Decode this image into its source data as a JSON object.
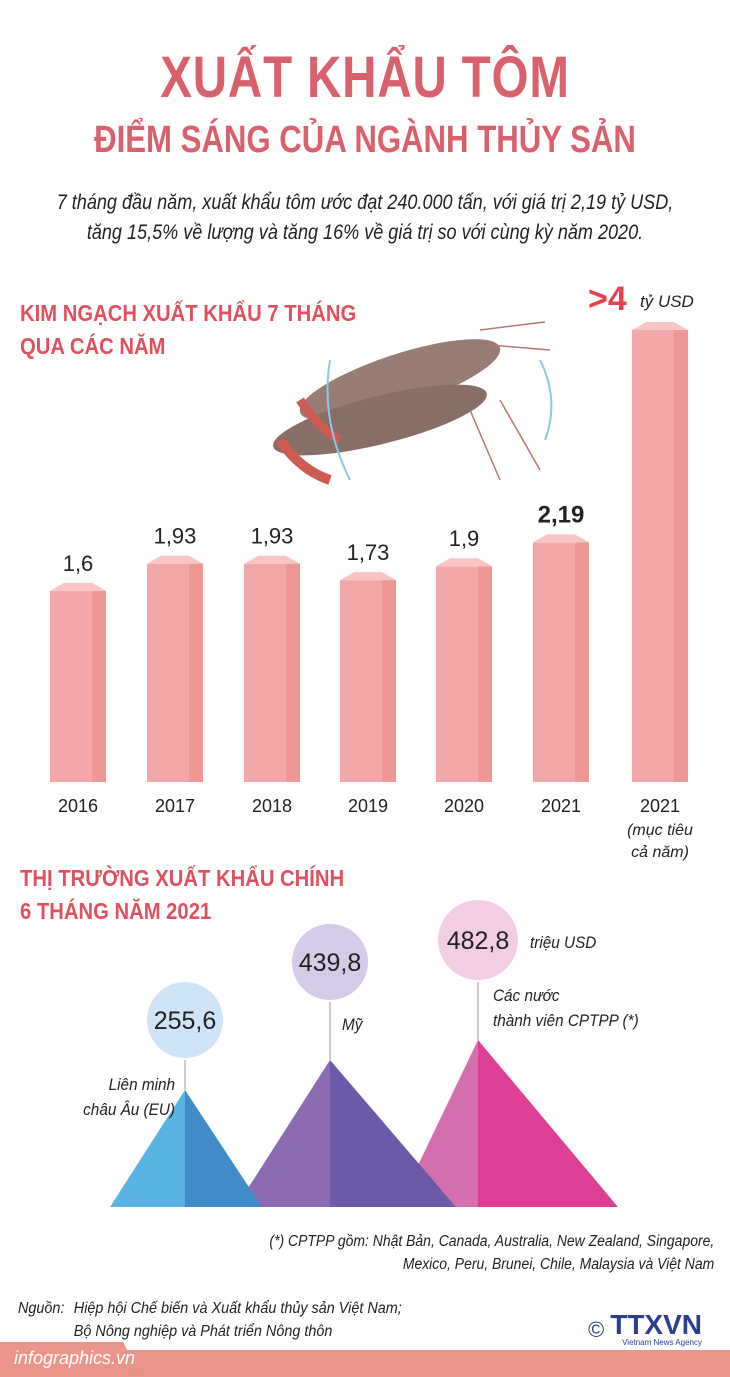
{
  "header": {
    "title": "XUẤT KHẨU TÔM",
    "subtitle": "ĐIỂM SÁNG CỦA NGÀNH THỦY SẢN",
    "intro_line1": "7 tháng đầu năm, xuất khẩu tôm ước đạt 240.000 tấn, với giá trị 2,19 tỷ USD,",
    "intro_line2": "tăng 15,5% về lượng và tăng 16% về giá trị so với cùng kỳ năm 2020."
  },
  "chart_data": [
    {
      "type": "bar",
      "title": "KIM NGẠCH XUẤT KHẨU 7 THÁNG QUA CÁC NĂM",
      "title_line1": "KIM NGẠCH XUẤT KHẨU 7 THÁNG",
      "title_line2": "QUA CÁC NĂM",
      "categories": [
        "2016",
        "2017",
        "2018",
        "2019",
        "2020",
        "2021",
        "2021"
      ],
      "category_notes": [
        "",
        "",
        "",
        "",
        "",
        "",
        "(mục tiêu cả năm)"
      ],
      "note_line1": "(mục tiêu",
      "note_line2": "cả năm)",
      "values": [
        1.6,
        1.93,
        1.93,
        1.73,
        1.9,
        2.19,
        4
      ],
      "data_labels": [
        "1,6",
        "1,93",
        "1,93",
        "1,73",
        "1,9",
        "2,19",
        ">4"
      ],
      "unit": "tỷ USD",
      "bar_color": "#f4a7a9",
      "highlight_color": "#e8404e"
    },
    {
      "type": "bubble-pyramid",
      "title": "THỊ TRƯỜNG XUẤT KHẨU CHÍNH 6 THÁNG NĂM 2021",
      "title_line1": "THỊ TRƯỜNG XUẤT KHẨU CHÍNH",
      "title_line2": "6 THÁNG NĂM 2021",
      "unit": "triệu USD",
      "markets": [
        {
          "name": "Liên minh châu Âu (EU)",
          "line1": "Liên minh",
          "line2": "châu Âu (EU)",
          "value": 255.6,
          "label": "255,6",
          "color_light": "#5ab4e3",
          "color_dark": "#3f8cc8",
          "bubble": "#cfe4f6"
        },
        {
          "name": "Mỹ",
          "line1": "Mỹ",
          "line2": "",
          "value": 439.8,
          "label": "439,8",
          "color_light": "#8d6bb2",
          "color_dark": "#6a5aa8",
          "bubble": "#d4cbe8"
        },
        {
          "name": "Các nước thành viên CPTPP (*)",
          "line1": "Các nước",
          "line2": "thành viên CPTPP (*)",
          "value": 482.8,
          "label": "482,8",
          "color_light": "#d46fae",
          "color_dark": "#dc3f94",
          "bubble": "#f2cde3"
        }
      ]
    }
  ],
  "footnote": {
    "line1": "(*) CPTPP gồm: Nhật Bản, Canada, Australia, New Zealand, Singapore,",
    "line2": "Mexico, Peru, Brunei, Chile, Malaysia và Việt Nam"
  },
  "source": {
    "label": "Nguồn:",
    "line1": "Hiệp hội Chế biến và Xuất khẩu thủy sản Việt Nam;",
    "line2": "Bộ Nông nghiệp và Phát triển Nông thôn"
  },
  "logo": {
    "copyright": "©",
    "text": "TTXVN",
    "tagline": "Vietnam News Agency"
  },
  "footer": {
    "site": "infographics.vn"
  }
}
